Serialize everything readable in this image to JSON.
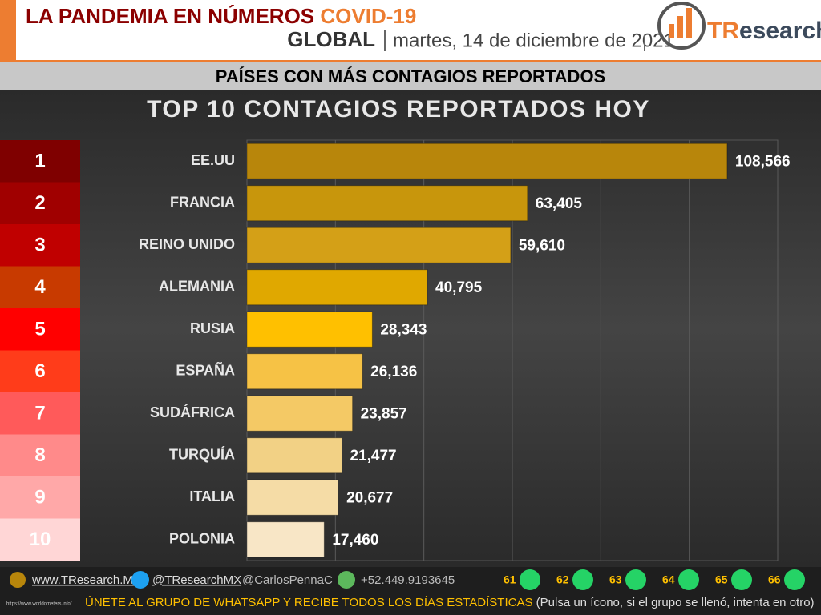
{
  "header": {
    "title": "LA PANDEMIA EN NÚMEROS",
    "highlight": "COVID-19",
    "scope": "GLOBAL",
    "date": "martes, 14 de diciembre de 2021",
    "logo_mark": "TR",
    "logo_rest": "esearch"
  },
  "banner": "PAÍSES CON MÁS CONTAGIOS REPORTADOS",
  "chart_data": {
    "type": "bar",
    "orientation": "horizontal",
    "title": "TOP 10 CONTAGIOS REPORTADOS HOY",
    "ranks": [
      1,
      2,
      3,
      4,
      5,
      6,
      7,
      8,
      9,
      10
    ],
    "rank_colors": [
      "#7f0000",
      "#a00000",
      "#c00000",
      "#c83a00",
      "#ff0000",
      "#ff3c1a",
      "#ff5a5a",
      "#ff8a8a",
      "#ffa8a8",
      "#ffd6d6"
    ],
    "categories": [
      "EE.UU",
      "FRANCIA",
      "REINO UNIDO",
      "ALEMANIA",
      "RUSIA",
      "ESPAÑA",
      "SUDÁFRICA",
      "TURQUÍA",
      "ITALIA",
      "POLONIA"
    ],
    "values": [
      108566,
      63405,
      59610,
      40795,
      28343,
      26136,
      23857,
      21477,
      20677,
      17460
    ],
    "value_labels": [
      "108,566",
      "63,405",
      "59,610",
      "40,795",
      "28,343",
      "26,136",
      "23,857",
      "21,477",
      "20,677",
      "17,460"
    ],
    "colors": [
      "#b8860b",
      "#c8960c",
      "#d4a017",
      "#e0a800",
      "#ffc000",
      "#f6c245",
      "#f4c965",
      "#f2d185",
      "#f5dca6",
      "#f8e6c6"
    ],
    "xlim": [
      0,
      120000
    ],
    "xticks": [
      0,
      20000,
      40000,
      60000,
      80000,
      100000,
      120000
    ],
    "grid": true
  },
  "footer": {
    "website": "www.TResearch.Mx",
    "twitter": "@TResearchMX",
    "twitter2": "@CarlosPennaC",
    "phone": "+52.449.9193645",
    "groups": [
      61,
      62,
      63,
      64,
      65,
      66
    ],
    "cta": "ÚNETE AL GRUPO DE WHATSAPP Y RECIBE TODOS LOS DÍAS ESTADÍSTICAS",
    "note": "(Pulsa un ícono, si el grupo se llenó, intenta en otro)",
    "source": "https://www.worldometers.info/"
  }
}
